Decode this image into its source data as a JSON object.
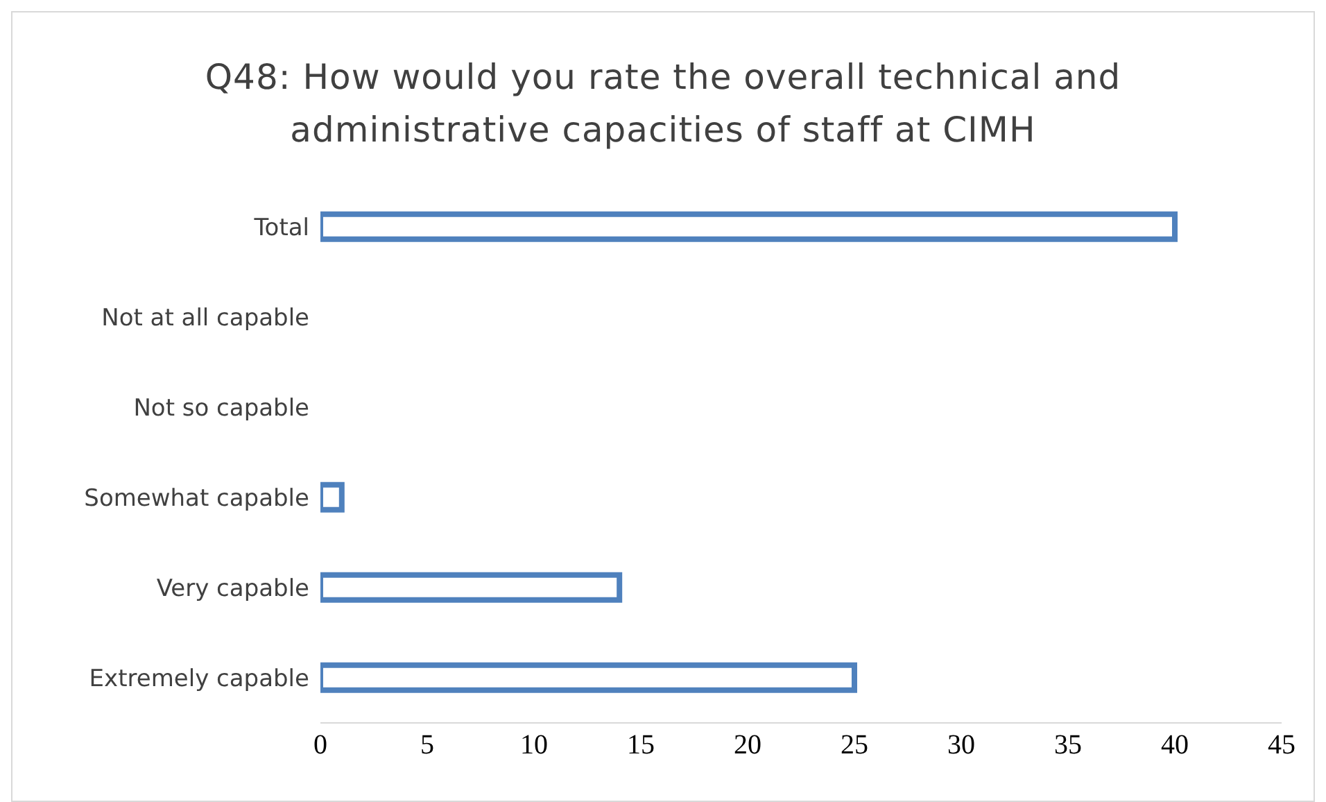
{
  "chart_data": {
    "type": "bar",
    "orientation": "horizontal",
    "title": "Q48: How would you rate the overall technical and administrative capacities of staff at CIMH",
    "categories": [
      "Total",
      "Not at all capable",
      "Not so capable",
      "Somewhat capable",
      "Very capable",
      "Extremely capable"
    ],
    "values": [
      40,
      0,
      0,
      1,
      14,
      25
    ],
    "color": "#4f81bd",
    "xlim": [
      0,
      45
    ],
    "xticks": [
      0,
      5,
      10,
      15,
      20,
      25,
      30,
      35,
      40,
      45
    ],
    "grid": false,
    "legend": false
  }
}
